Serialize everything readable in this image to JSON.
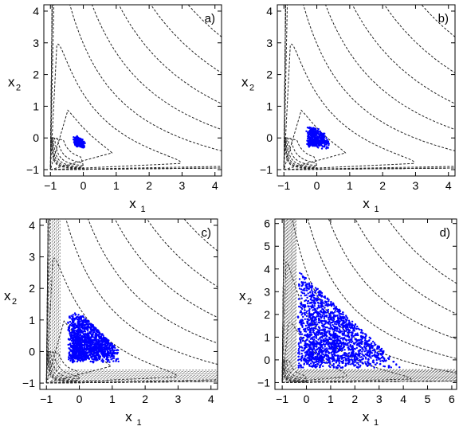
{
  "chart_data": [
    {
      "panel": "a)",
      "type": "contour+scatter",
      "xlabel": "x",
      "xlabel_sub": "1",
      "ylabel": "x",
      "ylabel_sub": "2",
      "xlim": [
        -1.2,
        4.2
      ],
      "ylim": [
        -1.2,
        4.2
      ],
      "xticks": [
        -1,
        0,
        1,
        2,
        3,
        4
      ],
      "yticks": [
        -1,
        0,
        1,
        2,
        3,
        4
      ],
      "contour_levels": [
        0.4,
        2.2,
        5.2,
        9.2,
        14.2,
        20.2,
        27.2
      ],
      "cloud": {
        "color": "#0000ff",
        "center": [
          0.1,
          0.05
        ],
        "extent": 0.3
      }
    },
    {
      "panel": "b)",
      "type": "contour+scatter",
      "xlabel": "x",
      "xlabel_sub": "1",
      "ylabel": "x",
      "ylabel_sub": "2",
      "xlim": [
        -1.2,
        4.2
      ],
      "ylim": [
        -1.2,
        4.2
      ],
      "xticks": [
        -1,
        0,
        1,
        2,
        3,
        4
      ],
      "yticks": [
        -1,
        0,
        1,
        2,
        3,
        4
      ],
      "contour_levels": [
        0.4,
        2.2,
        5.2,
        9.2,
        14.2,
        20.2,
        27.2
      ],
      "cloud": {
        "color": "#0000ff",
        "center": [
          0.1,
          0.1
        ],
        "extent": 0.6
      }
    },
    {
      "panel": "c)",
      "type": "contour+scatter",
      "xlabel": "x",
      "xlabel_sub": "1",
      "ylabel": "x",
      "ylabel_sub": "2",
      "xlim": [
        -1.2,
        4.2
      ],
      "ylim": [
        -1.2,
        4.2
      ],
      "xticks": [
        -1,
        0,
        1,
        2,
        3,
        4
      ],
      "yticks": [
        -1,
        0,
        1,
        2,
        3,
        4
      ],
      "contour_levels": [
        0.5,
        2.2,
        5.2,
        9.2,
        14.2,
        20.2,
        27.2
      ],
      "cloud": {
        "color": "#0000ff",
        "center": [
          0.3,
          0.3
        ],
        "extent": 1.4
      }
    },
    {
      "panel": "d)",
      "type": "contour+scatter",
      "xlabel": "x",
      "xlabel_sub": "1",
      "ylabel": "x",
      "ylabel_sub": "2",
      "xlim": [
        -1.3,
        6.2
      ],
      "ylim": [
        -1.3,
        6.2
      ],
      "xticks": [
        -1,
        0,
        1,
        2,
        3,
        4,
        5,
        6
      ],
      "yticks": [
        -1,
        0,
        1,
        2,
        3,
        4,
        5,
        6
      ],
      "contour_levels": [
        1.0,
        3.5,
        7.0,
        12.0,
        19.0,
        28.0,
        39.0
      ],
      "cloud": {
        "color": "#0000ff",
        "center": [
          0.8,
          0.8
        ],
        "extent": 4.0
      }
    }
  ]
}
